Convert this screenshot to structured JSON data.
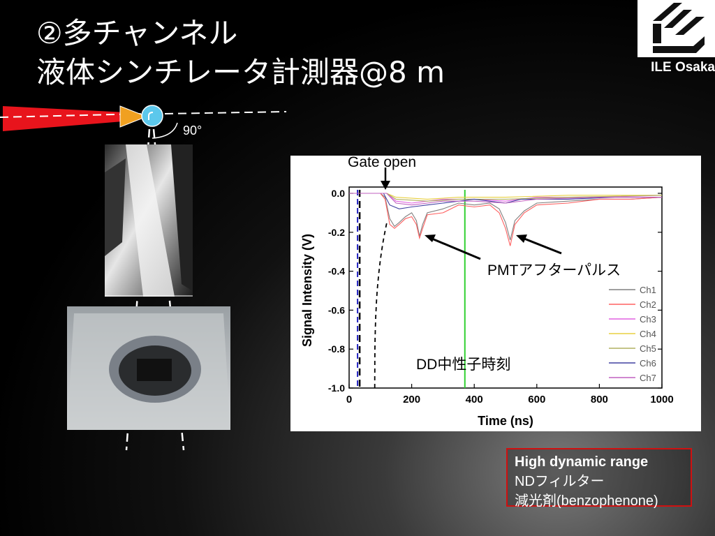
{
  "slide": {
    "title_line1": "②多チャンネル",
    "title_line2": "液体シンチレータ計測器@8 m",
    "logo_text": "ILE Osaka",
    "angle_label": "90°"
  },
  "info_box": {
    "line1": "High dynamic range",
    "line2": "NDフィルター",
    "line3": "減光剤(benzophenone)"
  },
  "annotations": {
    "gate": "Gate open",
    "pmt": "PMTアフターパルス",
    "dd": "DD中性子時刻"
  },
  "colors": {
    "laser": "#e8141c",
    "target_arrow": "#f0a020",
    "detector": "#5cc8ec",
    "box_border": "#d01010"
  },
  "chart_data": {
    "type": "line",
    "xlabel": "Time (ns)",
    "ylabel": "Signal Intensity (V)",
    "xlim": [
      0,
      1000
    ],
    "ylim": [
      -1.0,
      0.05
    ],
    "xticks": [
      "0",
      "200",
      "400",
      "600",
      "800",
      "1000"
    ],
    "yticks": [
      "0.0",
      "-0.2",
      "-0.4",
      "-0.6",
      "-0.8",
      "-1.0"
    ],
    "legend_position": "right",
    "markers": {
      "gate_open_ns": 120,
      "dd_neutron_ns": 370,
      "blue_dashed_ns": 27,
      "black_dashed_ns": 82
    },
    "series": [
      {
        "name": "Ch1",
        "color": "#808080",
        "points": [
          [
            0,
            0
          ],
          [
            100,
            0
          ],
          [
            115,
            -0.02
          ],
          [
            130,
            -0.13
          ],
          [
            145,
            -0.17
          ],
          [
            160,
            -0.15
          ],
          [
            180,
            -0.12
          ],
          [
            200,
            -0.1
          ],
          [
            215,
            -0.14
          ],
          [
            225,
            -0.22
          ],
          [
            235,
            -0.16
          ],
          [
            250,
            -0.1
          ],
          [
            300,
            -0.08
          ],
          [
            350,
            -0.05
          ],
          [
            400,
            -0.06
          ],
          [
            450,
            -0.05
          ],
          [
            480,
            -0.08
          ],
          [
            500,
            -0.15
          ],
          [
            515,
            -0.24
          ],
          [
            530,
            -0.14
          ],
          [
            560,
            -0.09
          ],
          [
            600,
            -0.05
          ],
          [
            700,
            -0.04
          ],
          [
            800,
            -0.03
          ],
          [
            900,
            -0.03
          ],
          [
            1000,
            -0.02
          ]
        ]
      },
      {
        "name": "Ch2",
        "color": "#ff6060",
        "points": [
          [
            0,
            0
          ],
          [
            100,
            0
          ],
          [
            115,
            -0.03
          ],
          [
            130,
            -0.16
          ],
          [
            145,
            -0.18
          ],
          [
            160,
            -0.16
          ],
          [
            180,
            -0.13
          ],
          [
            200,
            -0.12
          ],
          [
            215,
            -0.16
          ],
          [
            225,
            -0.23
          ],
          [
            235,
            -0.18
          ],
          [
            250,
            -0.11
          ],
          [
            300,
            -0.1
          ],
          [
            350,
            -0.06
          ],
          [
            400,
            -0.07
          ],
          [
            450,
            -0.06
          ],
          [
            480,
            -0.1
          ],
          [
            500,
            -0.18
          ],
          [
            515,
            -0.27
          ],
          [
            530,
            -0.16
          ],
          [
            560,
            -0.1
          ],
          [
            600,
            -0.06
          ],
          [
            700,
            -0.05
          ],
          [
            800,
            -0.03
          ],
          [
            900,
            -0.03
          ],
          [
            1000,
            -0.02
          ]
        ]
      },
      {
        "name": "Ch3",
        "color": "#e060e0",
        "points": [
          [
            0,
            0
          ],
          [
            120,
            0
          ],
          [
            150,
            -0.04
          ],
          [
            200,
            -0.05
          ],
          [
            250,
            -0.04
          ],
          [
            300,
            -0.03
          ],
          [
            400,
            -0.03
          ],
          [
            500,
            -0.04
          ],
          [
            600,
            -0.02
          ],
          [
            800,
            -0.02
          ],
          [
            1000,
            -0.01
          ]
        ]
      },
      {
        "name": "Ch4",
        "color": "#e8d040",
        "points": [
          [
            0,
            0
          ],
          [
            120,
            0
          ],
          [
            150,
            -0.02
          ],
          [
            250,
            -0.03
          ],
          [
            350,
            -0.02
          ],
          [
            500,
            -0.02
          ],
          [
            700,
            -0.01
          ],
          [
            1000,
            -0.01
          ]
        ]
      },
      {
        "name": "Ch5",
        "color": "#b0b060",
        "points": [
          [
            0,
            0
          ],
          [
            120,
            0
          ],
          [
            150,
            -0.03
          ],
          [
            250,
            -0.04
          ],
          [
            350,
            -0.03
          ],
          [
            500,
            -0.03
          ],
          [
            700,
            -0.02
          ],
          [
            1000,
            -0.01
          ]
        ]
      },
      {
        "name": "Ch6",
        "color": "#4040a0",
        "points": [
          [
            0,
            0
          ],
          [
            110,
            0
          ],
          [
            130,
            -0.06
          ],
          [
            160,
            -0.08
          ],
          [
            200,
            -0.07
          ],
          [
            250,
            -0.06
          ],
          [
            300,
            -0.05
          ],
          [
            350,
            -0.04
          ],
          [
            400,
            -0.03
          ],
          [
            500,
            -0.05
          ],
          [
            550,
            -0.03
          ],
          [
            700,
            -0.03
          ],
          [
            850,
            -0.02
          ],
          [
            1000,
            -0.02
          ]
        ]
      },
      {
        "name": "Ch7",
        "color": "#c060c0",
        "points": [
          [
            0,
            0
          ],
          [
            120,
            0
          ],
          [
            150,
            -0.05
          ],
          [
            200,
            -0.06
          ],
          [
            250,
            -0.05
          ],
          [
            300,
            -0.04
          ],
          [
            400,
            -0.04
          ],
          [
            500,
            -0.05
          ],
          [
            600,
            -0.03
          ],
          [
            800,
            -0.02
          ],
          [
            1000,
            -0.02
          ]
        ]
      }
    ]
  }
}
